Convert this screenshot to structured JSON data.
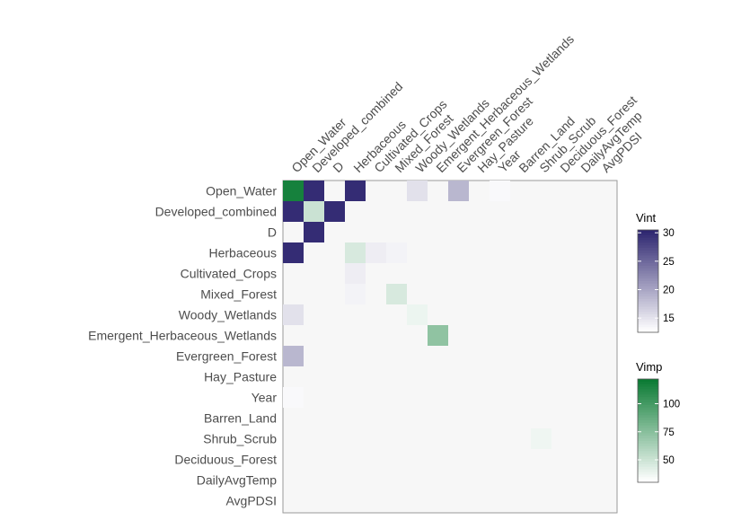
{
  "chart_data": {
    "type": "heatmap",
    "title": "",
    "xlabel": "",
    "ylabel": "",
    "variables": [
      "Open_Water",
      "Developed_combined",
      "D",
      "Herbaceous",
      "Cultivated_Crops",
      "Mixed_Forest",
      "Woody_Wetlands",
      "Emergent_Herbaceous_Wetlands",
      "Evergreen_Forest",
      "Hay_Pasture",
      "Year",
      "Barren_Land",
      "Shrub_Scrub",
      "Deciduous_Forest",
      "DailyAvgTemp",
      "AvgPDSI"
    ],
    "vimp": [
      {
        "variable": "Open_Water",
        "value": 118
      },
      {
        "variable": "Developed_combined",
        "value": 50
      },
      {
        "variable": "Herbaceous",
        "value": 45
      },
      {
        "variable": "Mixed_Forest",
        "value": 45
      },
      {
        "variable": "Woody_Wetlands",
        "value": 37
      },
      {
        "variable": "Emergent_Herbaceous_Wetlands",
        "value": 72
      },
      {
        "variable": "Shrub_Scrub",
        "value": 36
      }
    ],
    "vint": [
      {
        "row": "Open_Water",
        "col": "Developed_combined",
        "value": 30
      },
      {
        "row": "Open_Water",
        "col": "Herbaceous",
        "value": 30
      },
      {
        "row": "Open_Water",
        "col": "Woody_Wetlands",
        "value": 15
      },
      {
        "row": "Open_Water",
        "col": "Evergreen_Forest",
        "value": 18.5
      },
      {
        "row": "Open_Water",
        "col": "Year",
        "value": 13
      },
      {
        "row": "Developed_combined",
        "col": "Open_Water",
        "value": 30
      },
      {
        "row": "Developed_combined",
        "col": "D",
        "value": 30
      },
      {
        "row": "D",
        "col": "Developed_combined",
        "value": 30
      },
      {
        "row": "Herbaceous",
        "col": "Open_Water",
        "value": 30
      },
      {
        "row": "Herbaceous",
        "col": "Cultivated_Crops",
        "value": 14
      },
      {
        "row": "Herbaceous",
        "col": "Mixed_Forest",
        "value": 13.5
      },
      {
        "row": "Cultivated_Crops",
        "col": "Herbaceous",
        "value": 14
      },
      {
        "row": "Mixed_Forest",
        "col": "Herbaceous",
        "value": 13.5
      },
      {
        "row": "Woody_Wetlands",
        "col": "Open_Water",
        "value": 15
      },
      {
        "row": "Evergreen_Forest",
        "col": "Open_Water",
        "value": 18.5
      },
      {
        "row": "Year",
        "col": "Open_Water",
        "value": 13
      }
    ],
    "legends": [
      {
        "title": "Vint",
        "ticks": [
          15,
          20,
          25,
          30
        ],
        "range": [
          12.5,
          30.5
        ],
        "low_color": "#ffffff",
        "high_color": "#2e2670"
      },
      {
        "title": "Vimp",
        "ticks": [
          50,
          75,
          100
        ],
        "range": [
          30,
          122
        ],
        "low_color": "#ffffff",
        "high_color": "#0b7b34"
      }
    ],
    "background_color": "#f7f7f7",
    "grid": false,
    "legend_position": "right"
  }
}
